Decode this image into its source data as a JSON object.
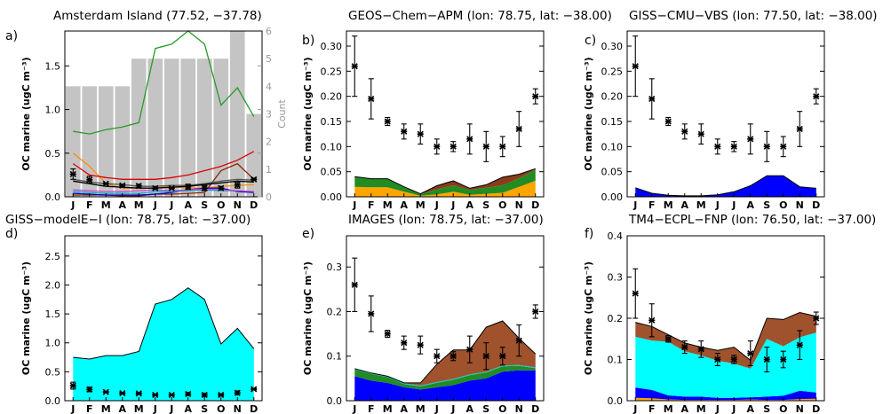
{
  "chart_data": [
    {
      "panel": "a)",
      "type": "line",
      "title": "Amsterdam Island (77.52, −37.78)",
      "xlabel": "",
      "ylabel": "OC marine (ugC m⁻³)",
      "y2label": "Count",
      "categories": [
        "J",
        "F",
        "M",
        "A",
        "M",
        "J",
        "J",
        "A",
        "S",
        "O",
        "N",
        "D"
      ],
      "ylim": [
        0,
        1.9
      ],
      "yticks": [
        "0.0",
        "0.5",
        "1.0",
        "1.5"
      ],
      "y2lim": [
        0,
        6
      ],
      "y2ticks": [
        "0",
        "1",
        "2",
        "3",
        "4",
        "5",
        "6"
      ],
      "count_bars": [
        4,
        4,
        4,
        4,
        5,
        5,
        5,
        5,
        5,
        5,
        6,
        3
      ],
      "observations": {
        "values": [
          0.26,
          0.195,
          0.15,
          0.13,
          0.125,
          0.1,
          0.1,
          0.115,
          0.1,
          0.1,
          0.135,
          0.2
        ],
        "err": [
          0.06,
          0.04,
          0.008,
          0.015,
          0.02,
          0.015,
          0.01,
          0.03,
          0.03,
          0.02,
          0.035,
          0.015
        ]
      },
      "series": [
        {
          "color": "#2a9a2a",
          "values": [
            0.75,
            0.72,
            0.77,
            0.8,
            0.85,
            1.7,
            1.75,
            1.95,
            1.75,
            1.05,
            1.25,
            0.92
          ]
        },
        {
          "color": "#ff8c00",
          "values": [
            0.5,
            0.35,
            0.15,
            0.1,
            0.1,
            0.1,
            0.12,
            0.1,
            0.1,
            0.12,
            0.13,
            0.14
          ]
        },
        {
          "color": "#dd0000",
          "values": [
            0.38,
            0.25,
            0.22,
            0.2,
            0.2,
            0.2,
            0.22,
            0.25,
            0.3,
            0.35,
            0.42,
            0.52
          ]
        },
        {
          "color": "#8b2500",
          "values": [
            0.02,
            0.02,
            0.02,
            0.01,
            0.01,
            0.03,
            0.03,
            0.04,
            0.05,
            0.3,
            0.38,
            0.2
          ]
        },
        {
          "color": "#0000cc",
          "values": [
            0.04,
            0.03,
            0.02,
            0.02,
            0.02,
            0.03,
            0.05,
            0.08,
            0.1,
            0.1,
            0.06,
            0.05
          ]
        },
        {
          "color": "#00aacc",
          "values": [
            0.06,
            0.05,
            0.04,
            0.04,
            0.04,
            0.06,
            0.06,
            0.07,
            0.08,
            0.07,
            0.07,
            0.06
          ]
        },
        {
          "color": "#cc44cc",
          "values": [
            0.08,
            0.07,
            0.06,
            0.06,
            0.07,
            0.08,
            0.07,
            0.08,
            0.09,
            0.08,
            0.07,
            0.06
          ]
        },
        {
          "color": "#555555",
          "values": [
            0.2,
            0.17,
            0.15,
            0.14,
            0.12,
            0.12,
            0.13,
            0.13,
            0.15,
            0.18,
            0.2,
            0.19
          ]
        },
        {
          "color": "#000000",
          "values": [
            0.18,
            0.15,
            0.12,
            0.11,
            0.1,
            0.1,
            0.11,
            0.12,
            0.14,
            0.16,
            0.18,
            0.17
          ]
        }
      ]
    },
    {
      "panel": "b)",
      "type": "area",
      "title": "GEOS−Chem−APM (lon: 78.75, lat: −38.00)",
      "ylabel": "OC marine (ugC m⁻³)",
      "categories": [
        "J",
        "F",
        "M",
        "A",
        "M",
        "J",
        "J",
        "A",
        "S",
        "O",
        "N",
        "D"
      ],
      "ylim": [
        0,
        0.33
      ],
      "yticks": [
        "0.00",
        "0.05",
        "0.10",
        "0.15",
        "0.20",
        "0.25",
        "0.30"
      ],
      "observations": {
        "values": [
          0.26,
          0.195,
          0.15,
          0.13,
          0.125,
          0.1,
          0.1,
          0.115,
          0.1,
          0.1,
          0.135,
          0.2
        ],
        "err": [
          0.06,
          0.04,
          0.008,
          0.015,
          0.02,
          0.015,
          0.01,
          0.03,
          0.03,
          0.02,
          0.035,
          0.015
        ]
      },
      "series": [
        {
          "color": "#ffa500",
          "values": [
            0.02,
            0.019,
            0.019,
            0.01,
            0.002,
            0.005,
            0.01,
            0.004,
            0.006,
            0.008,
            0.02,
            0.032
          ]
        },
        {
          "color": "#228b22",
          "values": [
            0.02,
            0.017,
            0.017,
            0.01,
            0.003,
            0.01,
            0.013,
            0.01,
            0.012,
            0.015,
            0.017,
            0.022
          ]
        },
        {
          "color": "#8b3a1a",
          "values": [
            0.0,
            0.0,
            0.0,
            0.0,
            0.001,
            0.007,
            0.009,
            0.003,
            0.006,
            0.016,
            0.008,
            0.002
          ]
        }
      ]
    },
    {
      "panel": "c)",
      "type": "area",
      "title": "GISS−CMU−VBS (lon: 77.50, lat: −38.00)",
      "ylabel": "OC marine (ugC m⁻³)",
      "categories": [
        "J",
        "F",
        "M",
        "A",
        "M",
        "J",
        "J",
        "A",
        "S",
        "O",
        "N",
        "D"
      ],
      "ylim": [
        0,
        0.33
      ],
      "yticks": [
        "0.00",
        "0.05",
        "0.10",
        "0.15",
        "0.20",
        "0.25",
        "0.30"
      ],
      "observations": {
        "values": [
          0.26,
          0.195,
          0.15,
          0.13,
          0.125,
          0.1,
          0.1,
          0.115,
          0.1,
          0.1,
          0.135,
          0.2
        ],
        "err": [
          0.06,
          0.04,
          0.008,
          0.015,
          0.02,
          0.015,
          0.01,
          0.03,
          0.03,
          0.02,
          0.035,
          0.015
        ]
      },
      "series": [
        {
          "color": "#0000ff",
          "values": [
            0.018,
            0.007,
            0.003,
            0.002,
            0.002,
            0.004,
            0.01,
            0.022,
            0.042,
            0.042,
            0.02,
            0.017
          ]
        }
      ]
    },
    {
      "panel": "d)",
      "type": "area",
      "title": "GISS−modelE−I (lon: 78.75, lat: −37.00)",
      "ylabel": "OC marine (ugC m⁻³)",
      "categories": [
        "J",
        "F",
        "M",
        "A",
        "M",
        "J",
        "J",
        "A",
        "S",
        "O",
        "N",
        "D"
      ],
      "ylim": [
        0,
        2.85
      ],
      "yticks": [
        "0.0",
        "0.5",
        "1.0",
        "1.5",
        "2.0",
        "2.5"
      ],
      "observations": {
        "values": [
          0.26,
          0.195,
          0.15,
          0.13,
          0.125,
          0.1,
          0.1,
          0.115,
          0.1,
          0.1,
          0.135,
          0.2
        ],
        "err": [
          0.06,
          0.04,
          0.008,
          0.015,
          0.02,
          0.015,
          0.01,
          0.03,
          0.03,
          0.02,
          0.035,
          0.015
        ]
      },
      "series": [
        {
          "color": "#00ffff",
          "values": [
            0.75,
            0.72,
            0.78,
            0.78,
            0.85,
            1.67,
            1.75,
            1.95,
            1.75,
            0.98,
            1.25,
            0.9
          ]
        }
      ]
    },
    {
      "panel": "e)",
      "type": "area",
      "title": "IMAGES (lon: 78.75, lat: −37.00)",
      "ylabel": "OC marine (ugC m⁻³)",
      "categories": [
        "J",
        "F",
        "M",
        "A",
        "M",
        "J",
        "J",
        "A",
        "S",
        "O",
        "N",
        "D"
      ],
      "ylim": [
        0,
        0.37
      ],
      "yticks": [
        "0.0",
        "0.1",
        "0.2",
        "0.3"
      ],
      "observations": {
        "values": [
          0.26,
          0.195,
          0.15,
          0.13,
          0.125,
          0.1,
          0.1,
          0.115,
          0.1,
          0.1,
          0.135,
          0.2
        ],
        "err": [
          0.06,
          0.04,
          0.008,
          0.015,
          0.02,
          0.015,
          0.01,
          0.03,
          0.03,
          0.02,
          0.035,
          0.015
        ]
      },
      "series": [
        {
          "color": "#0000ff",
          "values": [
            0.055,
            0.045,
            0.04,
            0.03,
            0.025,
            0.03,
            0.035,
            0.045,
            0.05,
            0.065,
            0.068,
            0.068
          ]
        },
        {
          "color": "#228b22",
          "values": [
            0.015,
            0.015,
            0.013,
            0.007,
            0.007,
            0.01,
            0.012,
            0.012,
            0.013,
            0.012,
            0.01,
            0.005
          ]
        },
        {
          "color": "#00cccc",
          "values": [
            0.002,
            0.002,
            0.002,
            0.002,
            0.002,
            0.002,
            0.002,
            0.002,
            0.002,
            0.002,
            0.002,
            0.002
          ]
        },
        {
          "color": "#a0522d",
          "values": [
            0.0,
            0.0,
            0.0,
            0.001,
            0.006,
            0.04,
            0.065,
            0.055,
            0.1,
            0.1,
            0.06,
            0.03
          ]
        }
      ]
    },
    {
      "panel": "f)",
      "type": "area",
      "title": "TM4−ECPL−FNP (lon: 76.50, lat: −37.00)",
      "ylabel": "OC marine (ugC m⁻³)",
      "categories": [
        "J",
        "F",
        "M",
        "A",
        "M",
        "J",
        "J",
        "A",
        "S",
        "O",
        "N",
        "D"
      ],
      "ylim": [
        0,
        0.4
      ],
      "yticks": [
        "0.0",
        "0.1",
        "0.2",
        "0.3",
        "0.4"
      ],
      "observations": {
        "values": [
          0.26,
          0.195,
          0.15,
          0.13,
          0.125,
          0.1,
          0.1,
          0.115,
          0.1,
          0.1,
          0.135,
          0.2
        ],
        "err": [
          0.06,
          0.04,
          0.008,
          0.015,
          0.02,
          0.015,
          0.01,
          0.03,
          0.03,
          0.02,
          0.035,
          0.015
        ]
      },
      "series": [
        {
          "color": "#ffa500",
          "values": [
            0.007,
            0.006,
            0.003,
            0.002,
            0.002,
            0.002,
            0.002,
            0.003,
            0.002,
            0.002,
            0.004,
            0.005
          ]
        },
        {
          "color": "#0000ff",
          "values": [
            0.025,
            0.02,
            0.01,
            0.008,
            0.008,
            0.005,
            0.005,
            0.005,
            0.008,
            0.01,
            0.02,
            0.015
          ]
        },
        {
          "color": "#00ffff",
          "values": [
            0.123,
            0.12,
            0.13,
            0.11,
            0.1,
            0.09,
            0.083,
            0.07,
            0.14,
            0.12,
            0.13,
            0.145
          ]
        },
        {
          "color": "#a0522d",
          "values": [
            0.035,
            0.034,
            0.017,
            0.02,
            0.02,
            0.025,
            0.04,
            0.02,
            0.05,
            0.065,
            0.06,
            0.04
          ]
        }
      ]
    }
  ]
}
